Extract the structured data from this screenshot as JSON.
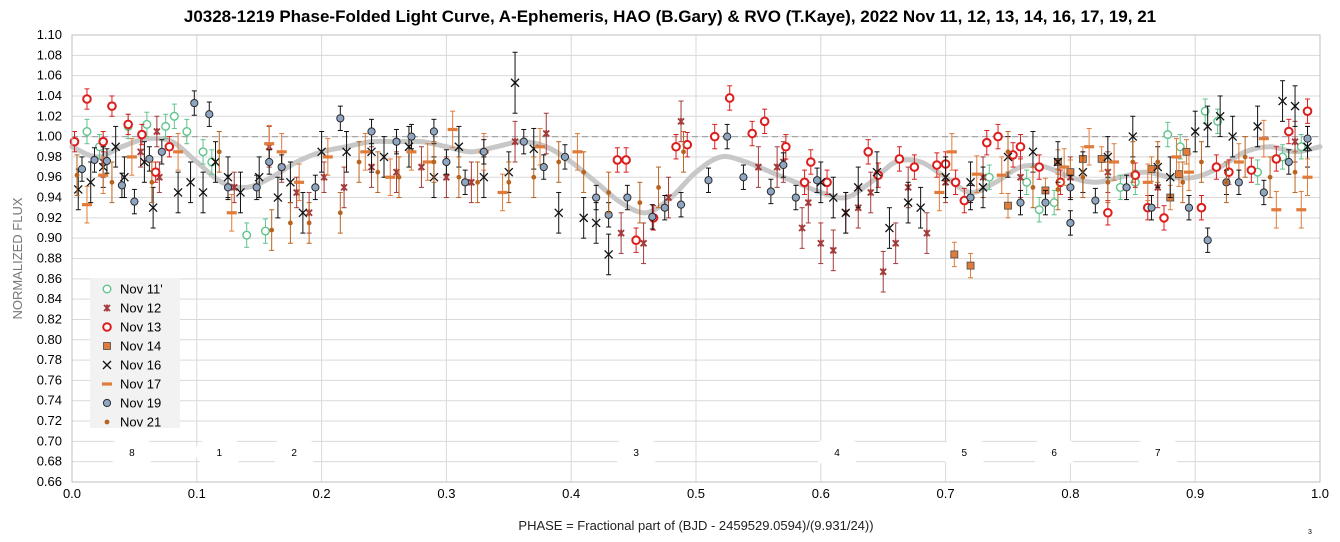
{
  "chart_data": {
    "type": "scatter",
    "title": "J0328-1219 Phase-Folded Light Curve, A-Ephemeris, HAO (B.Gary) & RVO (T.Kaye), 2022 Nov 11, 12, 13, 14, 16, 17, 19, 21",
    "xlabel": "PHASE = Fractional part of (BJD - 2459529.0594)/(9.931/24))",
    "ylabel": "NORMALIZED FLUX",
    "xlim": [
      0.0,
      1.0
    ],
    "ylim": [
      0.66,
      1.1
    ],
    "x_ticks": [
      "0.0",
      "0.1",
      "0.2",
      "0.3",
      "0.4",
      "0.5",
      "0.6",
      "0.7",
      "0.8",
      "0.9",
      "1.0"
    ],
    "y_ticks": [
      "0.66",
      "0.68",
      "0.70",
      "0.72",
      "0.74",
      "0.76",
      "0.78",
      "0.80",
      "0.82",
      "0.84",
      "0.86",
      "0.88",
      "0.90",
      "0.92",
      "0.94",
      "0.96",
      "0.98",
      "1.00",
      "1.02",
      "1.04",
      "1.06",
      "1.08",
      "1.10"
    ],
    "grid": true,
    "legend_position": "lower-left",
    "reference_line": 1.0,
    "segment_labels": [
      {
        "label": "8",
        "x": 0.048
      },
      {
        "label": "1",
        "x": 0.118
      },
      {
        "label": "2",
        "x": 0.178
      },
      {
        "label": "3",
        "x": 0.452
      },
      {
        "label": "4",
        "x": 0.613
      },
      {
        "label": "5",
        "x": 0.715
      },
      {
        "label": "6",
        "x": 0.787
      },
      {
        "label": "7",
        "x": 0.87
      }
    ],
    "corner_note": "3",
    "model_curve": {
      "color": "#c8c8c8",
      "x": [
        0.0,
        0.02,
        0.04,
        0.06,
        0.08,
        0.1,
        0.12,
        0.14,
        0.16,
        0.18,
        0.2,
        0.22,
        0.24,
        0.26,
        0.28,
        0.3,
        0.32,
        0.34,
        0.36,
        0.38,
        0.4,
        0.42,
        0.44,
        0.46,
        0.48,
        0.5,
        0.52,
        0.54,
        0.56,
        0.58,
        0.6,
        0.62,
        0.64,
        0.66,
        0.68,
        0.7,
        0.72,
        0.74,
        0.76,
        0.78,
        0.8,
        0.82,
        0.84,
        0.86,
        0.88,
        0.9,
        0.92,
        0.94,
        0.96,
        0.98,
        1.0
      ],
      "y": [
        0.99,
        0.98,
        0.99,
        0.998,
        0.995,
        0.975,
        0.955,
        0.95,
        0.96,
        0.975,
        0.985,
        0.99,
        0.995,
        0.995,
        0.995,
        0.99,
        0.985,
        0.99,
        0.995,
        0.99,
        0.975,
        0.955,
        0.935,
        0.925,
        0.94,
        0.965,
        0.98,
        0.975,
        0.965,
        0.955,
        0.945,
        0.94,
        0.955,
        0.975,
        0.975,
        0.96,
        0.945,
        0.955,
        0.97,
        0.97,
        0.96,
        0.955,
        0.96,
        0.965,
        0.96,
        0.96,
        0.97,
        0.985,
        0.99,
        0.985,
        0.99
      ]
    },
    "series": [
      {
        "name": "Nov 11'",
        "marker": "circle-open",
        "color": "#5fc48c",
        "x": [
          0.012,
          0.022,
          0.045,
          0.06,
          0.075,
          0.082,
          0.092,
          0.105,
          0.112,
          0.14,
          0.155,
          0.735,
          0.765,
          0.775,
          0.787,
          0.84,
          0.852,
          0.878,
          0.888,
          0.908,
          0.918,
          0.95,
          0.97,
          0.985
        ],
        "y": [
          1.005,
          0.99,
          1.01,
          1.012,
          1.01,
          1.02,
          1.005,
          0.985,
          0.975,
          0.903,
          0.907,
          0.96,
          0.955,
          0.928,
          0.935,
          0.95,
          0.955,
          1.002,
          0.99,
          1.025,
          1.015,
          0.965,
          0.98,
          0.99
        ],
        "err": [
          0.012,
          0.012,
          0.012,
          0.012,
          0.012,
          0.012,
          0.012,
          0.012,
          0.012,
          0.012,
          0.012,
          0.012,
          0.012,
          0.012,
          0.012,
          0.012,
          0.012,
          0.012,
          0.012,
          0.012,
          0.012,
          0.012,
          0.012,
          0.012
        ]
      },
      {
        "name": "Nov 12",
        "marker": "star",
        "color": "#a33a3a",
        "x": [
          0.025,
          0.055,
          0.068,
          0.07,
          0.13,
          0.158,
          0.168,
          0.18,
          0.19,
          0.202,
          0.218,
          0.24,
          0.26,
          0.28,
          0.3,
          0.32,
          0.355,
          0.38,
          0.44,
          0.458,
          0.478,
          0.488,
          0.55,
          0.565,
          0.57,
          0.585,
          0.59,
          0.6,
          0.61,
          0.62,
          0.63,
          0.64,
          0.65,
          0.66,
          0.67,
          0.685,
          0.7,
          0.73,
          0.76,
          0.8,
          0.83,
          0.87,
          0.98
        ],
        "y": [
          0.975,
          0.985,
          1.005,
          0.96,
          0.95,
          0.99,
          0.97,
          0.945,
          0.925,
          0.96,
          0.95,
          0.97,
          0.965,
          0.97,
          0.96,
          0.955,
          0.995,
          1.003,
          0.905,
          0.895,
          0.94,
          1.015,
          0.97,
          0.97,
          0.975,
          0.91,
          0.935,
          0.895,
          0.888,
          0.925,
          0.93,
          0.945,
          0.867,
          0.895,
          0.95,
          0.905,
          0.955,
          0.96,
          0.96,
          0.96,
          0.965,
          0.95,
          0.995
        ],
        "err": [
          0.015,
          0.015,
          0.015,
          0.015,
          0.015,
          0.02,
          0.015,
          0.015,
          0.02,
          0.015,
          0.02,
          0.02,
          0.02,
          0.02,
          0.02,
          0.02,
          0.02,
          0.02,
          0.02,
          0.02,
          0.02,
          0.02,
          0.02,
          0.02,
          0.02,
          0.02,
          0.02,
          0.02,
          0.02,
          0.02,
          0.02,
          0.02,
          0.02,
          0.02,
          0.02,
          0.02,
          0.02,
          0.02,
          0.02,
          0.02,
          0.02,
          0.02,
          0.02
        ]
      },
      {
        "name": "Nov 13",
        "marker": "circle-open-thick",
        "color": "#dd1c1c",
        "x": [
          0.002,
          0.012,
          0.025,
          0.032,
          0.045,
          0.056,
          0.067,
          0.078,
          0.437,
          0.444,
          0.452,
          0.466,
          0.484,
          0.493,
          0.515,
          0.527,
          0.545,
          0.555,
          0.572,
          0.587,
          0.592,
          0.605,
          0.638,
          0.646,
          0.663,
          0.675,
          0.693,
          0.7,
          0.708,
          0.715,
          0.733,
          0.742,
          0.754,
          0.76,
          0.775,
          0.792,
          0.83,
          0.852,
          0.862,
          0.875,
          0.905,
          0.917,
          0.927,
          0.945,
          0.965,
          0.975,
          0.99
        ],
        "y": [
          0.995,
          1.037,
          0.995,
          1.03,
          1.012,
          1.002,
          0.965,
          0.99,
          0.977,
          0.977,
          0.898,
          0.92,
          0.99,
          0.992,
          1.0,
          1.038,
          1.003,
          1.015,
          0.99,
          0.955,
          0.975,
          0.955,
          0.985,
          0.962,
          0.978,
          0.97,
          0.972,
          0.973,
          0.955,
          0.937,
          0.994,
          1.0,
          0.982,
          0.99,
          0.97,
          0.955,
          0.925,
          0.962,
          0.93,
          0.92,
          0.93,
          0.97,
          0.965,
          0.967,
          0.978,
          1.005,
          1.025
        ],
        "err": [
          0.01,
          0.01,
          0.01,
          0.01,
          0.01,
          0.01,
          0.01,
          0.01,
          0.012,
          0.012,
          0.012,
          0.012,
          0.012,
          0.012,
          0.012,
          0.012,
          0.012,
          0.012,
          0.012,
          0.012,
          0.012,
          0.012,
          0.012,
          0.012,
          0.012,
          0.012,
          0.012,
          0.012,
          0.012,
          0.012,
          0.012,
          0.012,
          0.012,
          0.012,
          0.012,
          0.012,
          0.012,
          0.012,
          0.012,
          0.012,
          0.012,
          0.012,
          0.012,
          0.012,
          0.012,
          0.012,
          0.012
        ]
      },
      {
        "name": "Nov 14",
        "marker": "square",
        "color": "#e07b39",
        "x": [
          0.707,
          0.72,
          0.75,
          0.78,
          0.79,
          0.8,
          0.81,
          0.825,
          0.865,
          0.88,
          0.887,
          0.893
        ],
        "y": [
          0.884,
          0.873,
          0.932,
          0.947,
          0.975,
          0.965,
          0.978,
          0.978,
          0.968,
          0.94,
          0.963,
          0.985
        ],
        "err": [
          0.012,
          0.012,
          0.012,
          0.012,
          0.012,
          0.012,
          0.012,
          0.012,
          0.012,
          0.012,
          0.012,
          0.012
        ]
      },
      {
        "name": "Nov 16",
        "marker": "x",
        "color": "#111111",
        "x": [
          0.005,
          0.015,
          0.025,
          0.035,
          0.042,
          0.058,
          0.065,
          0.085,
          0.095,
          0.105,
          0.115,
          0.125,
          0.135,
          0.15,
          0.165,
          0.175,
          0.185,
          0.2,
          0.22,
          0.24,
          0.25,
          0.27,
          0.29,
          0.31,
          0.33,
          0.35,
          0.355,
          0.37,
          0.39,
          0.41,
          0.42,
          0.43,
          0.6,
          0.61,
          0.62,
          0.63,
          0.645,
          0.655,
          0.67,
          0.68,
          0.7,
          0.72,
          0.73,
          0.75,
          0.77,
          0.79,
          0.81,
          0.83,
          0.85,
          0.87,
          0.88,
          0.9,
          0.91,
          0.92,
          0.93,
          0.95,
          0.97,
          0.98,
          0.99
        ],
        "y": [
          0.948,
          0.955,
          0.97,
          0.99,
          0.96,
          0.975,
          0.93,
          0.945,
          0.955,
          0.945,
          0.975,
          0.96,
          0.945,
          0.96,
          0.94,
          0.955,
          0.925,
          0.985,
          0.985,
          0.985,
          0.98,
          0.99,
          0.96,
          0.99,
          0.96,
          0.965,
          1.053,
          0.988,
          0.925,
          0.92,
          0.915,
          0.884,
          0.955,
          0.94,
          0.925,
          0.95,
          0.965,
          0.91,
          0.935,
          0.93,
          0.96,
          0.955,
          0.95,
          0.98,
          0.985,
          0.975,
          0.965,
          0.98,
          1.0,
          0.97,
          0.96,
          1.005,
          1.01,
          1.02,
          1.0,
          1.01,
          1.035,
          1.03,
          0.99
        ],
        "err": [
          0.02,
          0.02,
          0.02,
          0.02,
          0.02,
          0.02,
          0.02,
          0.02,
          0.02,
          0.02,
          0.02,
          0.02,
          0.02,
          0.02,
          0.02,
          0.02,
          0.02,
          0.02,
          0.02,
          0.02,
          0.02,
          0.02,
          0.02,
          0.02,
          0.02,
          0.02,
          0.03,
          0.02,
          0.02,
          0.02,
          0.02,
          0.02,
          0.02,
          0.02,
          0.02,
          0.02,
          0.02,
          0.02,
          0.02,
          0.02,
          0.02,
          0.02,
          0.02,
          0.02,
          0.02,
          0.02,
          0.02,
          0.02,
          0.02,
          0.02,
          0.02,
          0.02,
          0.02,
          0.02,
          0.02,
          0.02,
          0.02,
          0.02,
          0.02
        ]
      },
      {
        "name": "Nov 17",
        "marker": "dash",
        "color": "#e07b39",
        "x": [
          0.012,
          0.025,
          0.048,
          0.085,
          0.128,
          0.158,
          0.168,
          0.182,
          0.205,
          0.235,
          0.255,
          0.272,
          0.285,
          0.305,
          0.33,
          0.345,
          0.375,
          0.405,
          0.695,
          0.705,
          0.725,
          0.745,
          0.795,
          0.815,
          0.835,
          0.862,
          0.885,
          0.895,
          0.935,
          0.955,
          0.965,
          0.985,
          0.99
        ],
        "y": [
          0.933,
          0.962,
          0.98,
          0.985,
          0.925,
          0.993,
          0.985,
          0.955,
          0.98,
          0.985,
          0.96,
          0.985,
          0.975,
          1.007,
          0.985,
          0.945,
          0.99,
          0.985,
          0.945,
          0.985,
          0.963,
          0.962,
          0.97,
          0.99,
          0.975,
          0.955,
          0.98,
          0.965,
          0.975,
          0.998,
          0.928,
          0.928,
          0.96
        ],
        "err": [
          0.018,
          0.018,
          0.018,
          0.018,
          0.018,
          0.018,
          0.018,
          0.018,
          0.018,
          0.018,
          0.018,
          0.018,
          0.018,
          0.018,
          0.018,
          0.018,
          0.018,
          0.018,
          0.018,
          0.018,
          0.018,
          0.018,
          0.018,
          0.018,
          0.018,
          0.018,
          0.018,
          0.018,
          0.018,
          0.018,
          0.018,
          0.018,
          0.018
        ]
      },
      {
        "name": "Nov 19",
        "marker": "circle-filled",
        "color": "#8fa6c2",
        "x": [
          0.008,
          0.018,
          0.028,
          0.04,
          0.05,
          0.062,
          0.072,
          0.098,
          0.11,
          0.125,
          0.148,
          0.158,
          0.168,
          0.195,
          0.215,
          0.24,
          0.26,
          0.272,
          0.29,
          0.3,
          0.315,
          0.33,
          0.362,
          0.378,
          0.395,
          0.42,
          0.43,
          0.445,
          0.465,
          0.475,
          0.488,
          0.51,
          0.525,
          0.538,
          0.56,
          0.57,
          0.58,
          0.597,
          0.72,
          0.76,
          0.78,
          0.8,
          0.8,
          0.82,
          0.845,
          0.865,
          0.895,
          0.91,
          0.925,
          0.935,
          0.955,
          0.975,
          0.99
        ],
        "y": [
          0.968,
          0.977,
          0.976,
          0.952,
          0.936,
          0.978,
          0.985,
          1.033,
          1.022,
          0.95,
          0.95,
          0.975,
          0.97,
          0.95,
          1.018,
          1.005,
          0.995,
          1.0,
          1.005,
          0.975,
          0.955,
          0.985,
          0.995,
          0.97,
          0.98,
          0.94,
          0.923,
          0.94,
          0.921,
          0.93,
          0.933,
          0.957,
          1.0,
          0.96,
          0.946,
          0.972,
          0.94,
          0.957,
          0.94,
          0.935,
          0.935,
          0.95,
          0.915,
          0.937,
          0.95,
          0.93,
          0.93,
          0.898,
          0.955,
          0.955,
          0.945,
          0.975,
          0.998
        ],
        "err": [
          0.012,
          0.012,
          0.012,
          0.012,
          0.012,
          0.012,
          0.012,
          0.012,
          0.012,
          0.012,
          0.012,
          0.012,
          0.012,
          0.012,
          0.012,
          0.012,
          0.012,
          0.012,
          0.012,
          0.012,
          0.012,
          0.012,
          0.012,
          0.012,
          0.012,
          0.012,
          0.012,
          0.012,
          0.012,
          0.012,
          0.012,
          0.012,
          0.012,
          0.012,
          0.012,
          0.012,
          0.012,
          0.012,
          0.012,
          0.012,
          0.012,
          0.012,
          0.012,
          0.012,
          0.012,
          0.012,
          0.012,
          0.012,
          0.012,
          0.012,
          0.012,
          0.012,
          0.012
        ]
      },
      {
        "name": "Nov 21",
        "marker": "dot",
        "color": "#b8641f",
        "x": [
          0.004,
          0.032,
          0.064,
          0.118,
          0.16,
          0.175,
          0.19,
          0.215,
          0.23,
          0.245,
          0.262,
          0.29,
          0.31,
          0.325,
          0.35,
          0.37,
          0.39,
          0.41,
          0.43,
          0.455,
          0.47,
          0.49,
          0.75,
          0.77,
          0.79,
          0.81,
          0.83,
          0.85,
          0.87,
          0.89,
          0.905,
          0.925,
          0.94,
          0.96,
          0.98
        ],
        "y": [
          0.962,
          0.955,
          0.955,
          0.985,
          0.908,
          0.915,
          0.915,
          0.925,
          0.975,
          0.965,
          0.96,
          0.975,
          0.96,
          0.955,
          0.955,
          0.96,
          0.975,
          0.965,
          0.945,
          0.935,
          0.95,
          0.985,
          0.985,
          0.95,
          0.948,
          0.96,
          0.955,
          0.975,
          0.975,
          0.955,
          0.975,
          0.955,
          0.98,
          0.96,
          0.965
        ],
        "err": [
          0.02,
          0.02,
          0.02,
          0.02,
          0.02,
          0.02,
          0.02,
          0.02,
          0.02,
          0.02,
          0.02,
          0.02,
          0.02,
          0.02,
          0.02,
          0.02,
          0.02,
          0.02,
          0.02,
          0.02,
          0.02,
          0.02,
          0.02,
          0.02,
          0.02,
          0.02,
          0.02,
          0.02,
          0.02,
          0.02,
          0.02,
          0.02,
          0.02,
          0.02,
          0.02
        ]
      }
    ]
  }
}
